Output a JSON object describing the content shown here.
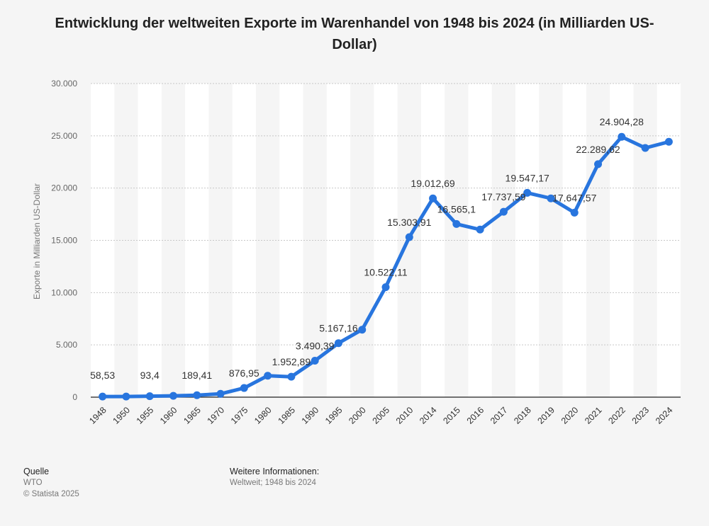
{
  "title": "Entwicklung der weltweiten Exporte im Warenhandel von 1948 bis 2024 (in Milliarden US-Dollar)",
  "footer": {
    "source_label": "Quelle",
    "source_value": "WTO",
    "copyright": "© Statista 2025",
    "info_label": "Weitere Informationen:",
    "info_value": "Weltweit; 1948 bis 2024"
  },
  "colors": {
    "line": "#2875de",
    "band": "#ffffff",
    "grid": "#c8c8c8"
  },
  "chart_data": {
    "type": "line",
    "title": "Entwicklung der weltweiten Exporte im Warenhandel von 1948 bis 2024 (in Milliarden US-Dollar)",
    "xlabel": "",
    "ylabel": "Exporte in Milliarden US-Dollar",
    "ylim": [
      0,
      30000
    ],
    "yticks": [
      0,
      5000,
      10000,
      15000,
      20000,
      25000,
      30000
    ],
    "ytick_labels": [
      "0",
      "5.000",
      "10.000",
      "15.000",
      "20.000",
      "25.000",
      "30.000"
    ],
    "grid": true,
    "categories": [
      "1948",
      "1950",
      "1955",
      "1960",
      "1965",
      "1970",
      "1975",
      "1980",
      "1985",
      "1990",
      "1995",
      "2000",
      "2005",
      "2010",
      "2014",
      "2015",
      "2016",
      "2017",
      "2018",
      "2019",
      "2020",
      "2021",
      "2022",
      "2023",
      "2024"
    ],
    "values": [
      58.53,
      61.8,
      93.4,
      130.2,
      189.41,
      318,
      876.95,
      2049,
      1952.89,
      3490.39,
      5167.16,
      6452,
      10522.11,
      15303.91,
      19012.69,
      16565.1,
      16032,
      17737.59,
      19547.17,
      19015,
      17647.57,
      22289.62,
      24904.28,
      23838,
      24430
    ],
    "data_labels": [
      "58,53",
      "",
      "93,4",
      "",
      "189,41",
      "",
      "876,95",
      "",
      "1.952,89",
      "3.490,39",
      "5.167,16",
      "",
      "10.522,11",
      "15.303,91",
      "19.012,69",
      "16.565,1",
      "",
      "17.737,59",
      "19.547,17",
      "",
      "17.647,57",
      "22.289,62",
      "24.904,28",
      "",
      ""
    ]
  }
}
